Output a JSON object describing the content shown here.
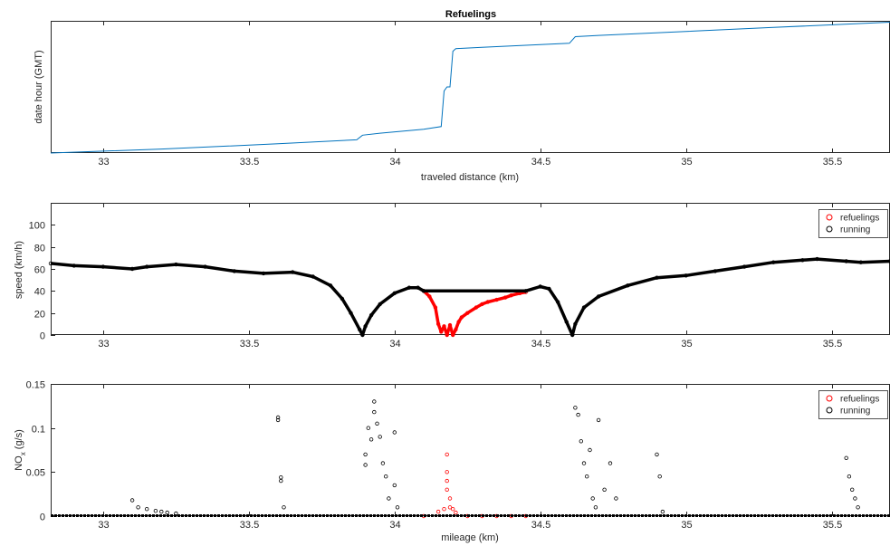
{
  "chart_data": [
    {
      "type": "line",
      "title": "Refuelings",
      "xlabel": "traveled distance (km)",
      "ylabel": "date hour (GMT)",
      "xlim": [
        32.82,
        35.7
      ],
      "xticks": [
        "33",
        "33.5",
        "34",
        "34.5",
        "35",
        "35.5"
      ],
      "xtick_values": [
        33,
        33.5,
        34,
        34.5,
        35,
        35.5
      ],
      "ylim": [
        0,
        1
      ],
      "yticks_shown": false,
      "grid": false,
      "series": [
        {
          "color": "#0072BD",
          "x": [
            32.82,
            33.2,
            33.6,
            33.87,
            33.89,
            33.95,
            34.1,
            34.16,
            34.17,
            34.18,
            34.19,
            34.2,
            34.21,
            34.3,
            34.5,
            34.6,
            34.62,
            34.7,
            35.0,
            35.3,
            35.7
          ],
          "y": [
            0.0,
            0.03,
            0.07,
            0.1,
            0.135,
            0.15,
            0.18,
            0.2,
            0.47,
            0.5,
            0.5,
            0.77,
            0.79,
            0.8,
            0.82,
            0.83,
            0.88,
            0.89,
            0.92,
            0.95,
            0.99
          ]
        }
      ]
    },
    {
      "type": "scatter",
      "xlabel": "",
      "ylabel": "speed (km/h)",
      "xlim": [
        32.82,
        35.7
      ],
      "xticks": [
        "33",
        "33.5",
        "34",
        "34.5",
        "35",
        "35.5"
      ],
      "xtick_values": [
        33,
        33.5,
        34,
        34.5,
        35,
        35.5
      ],
      "ylim": [
        0,
        120
      ],
      "yticks": [
        "0",
        "20",
        "40",
        "60",
        "80",
        "100"
      ],
      "ytick_values": [
        0,
        20,
        40,
        60,
        80,
        100
      ],
      "grid": false,
      "legend": {
        "placement": "top-right",
        "entries": [
          "refuelings",
          "running"
        ]
      },
      "series": [
        {
          "name": "refuelings",
          "color": "#ff0000",
          "x": [
            34.1,
            34.12,
            34.14,
            34.15,
            34.16,
            34.17,
            34.18,
            34.19,
            34.2,
            34.21,
            34.22,
            34.23,
            34.25,
            34.28,
            34.3,
            34.32,
            34.35,
            34.38,
            34.4,
            34.43,
            34.45
          ],
          "y": [
            40,
            35,
            25,
            10,
            3,
            8,
            0,
            9,
            0,
            5,
            12,
            16,
            20,
            25,
            28,
            30,
            32,
            34,
            36,
            38,
            39
          ]
        },
        {
          "name": "running",
          "color": "#000000",
          "x": [
            32.82,
            32.9,
            33.0,
            33.1,
            33.15,
            33.25,
            33.35,
            33.45,
            33.55,
            33.65,
            33.72,
            33.78,
            33.82,
            33.85,
            33.88,
            33.89,
            33.9,
            33.92,
            33.95,
            34.0,
            34.05,
            34.08,
            34.1,
            34.45,
            34.5,
            34.53,
            34.56,
            34.59,
            34.61,
            34.62,
            34.65,
            34.7,
            34.8,
            34.9,
            35.0,
            35.1,
            35.2,
            35.3,
            35.4,
            35.45,
            35.55,
            35.6,
            35.7
          ],
          "y": [
            65,
            63,
            62,
            60,
            62,
            64,
            62,
            58,
            56,
            57,
            53,
            45,
            33,
            20,
            5,
            0,
            8,
            18,
            28,
            38,
            43,
            43,
            40,
            40,
            44,
            42,
            30,
            12,
            0,
            10,
            25,
            35,
            45,
            52,
            54,
            58,
            62,
            66,
            68,
            69,
            67,
            66,
            67
          ]
        }
      ]
    },
    {
      "type": "scatter",
      "xlabel": "mileage (km)",
      "ylabel": "NOx (g/s)",
      "ylabel_main": "NO",
      "ylabel_sub": "x",
      "ylabel_rest": " (g/s)",
      "xlim": [
        32.82,
        35.7
      ],
      "xticks": [
        "33",
        "33.5",
        "34",
        "34.5",
        "35",
        "35.5"
      ],
      "xtick_values": [
        33,
        33.5,
        34,
        34.5,
        35,
        35.5
      ],
      "ylim": [
        0,
        0.15
      ],
      "yticks": [
        "0",
        "0.05",
        "0.1",
        "0.15"
      ],
      "ytick_values": [
        0,
        0.05,
        0.1,
        0.15
      ],
      "grid": false,
      "legend": {
        "placement": "top-right",
        "entries": [
          "refuelings",
          "running"
        ]
      },
      "series": [
        {
          "name": "refuelings",
          "color": "#ff0000",
          "x": [
            34.1,
            34.15,
            34.17,
            34.18,
            34.18,
            34.18,
            34.18,
            34.19,
            34.19,
            34.2,
            34.21,
            34.25,
            34.3,
            34.35,
            34.4,
            34.45
          ],
          "y": [
            0.0,
            0.005,
            0.008,
            0.07,
            0.05,
            0.04,
            0.03,
            0.02,
            0.01,
            0.008,
            0.004,
            0.0,
            0.0,
            0.0,
            0.0,
            0.0
          ],
          "baseline": {
            "x_from": 34.1,
            "x_to": 34.45,
            "y": 0.0
          }
        },
        {
          "name": "running",
          "color": "#000000",
          "x": [
            33.1,
            33.12,
            33.15,
            33.18,
            33.2,
            33.22,
            33.25,
            33.6,
            33.6,
            33.61,
            33.61,
            33.62,
            33.9,
            33.9,
            33.91,
            33.92,
            33.93,
            33.93,
            33.94,
            33.95,
            33.96,
            33.97,
            33.98,
            34.0,
            34.0,
            34.01,
            34.62,
            34.63,
            34.64,
            34.65,
            34.66,
            34.67,
            34.68,
            34.69,
            34.7,
            34.72,
            34.74,
            34.76,
            34.9,
            34.91,
            34.92,
            35.55,
            35.56,
            35.57,
            35.58,
            35.59
          ],
          "y": [
            0.018,
            0.01,
            0.008,
            0.006,
            0.005,
            0.004,
            0.003,
            0.112,
            0.109,
            0.044,
            0.04,
            0.01,
            0.07,
            0.058,
            0.1,
            0.087,
            0.13,
            0.118,
            0.105,
            0.09,
            0.06,
            0.045,
            0.02,
            0.095,
            0.035,
            0.01,
            0.123,
            0.115,
            0.085,
            0.06,
            0.045,
            0.075,
            0.02,
            0.01,
            0.109,
            0.03,
            0.06,
            0.02,
            0.07,
            0.045,
            0.005,
            0.066,
            0.045,
            0.03,
            0.02,
            0.01
          ],
          "baseline": {
            "x_from": 32.82,
            "x_to": 35.7,
            "y": 0.0
          }
        }
      ]
    }
  ]
}
